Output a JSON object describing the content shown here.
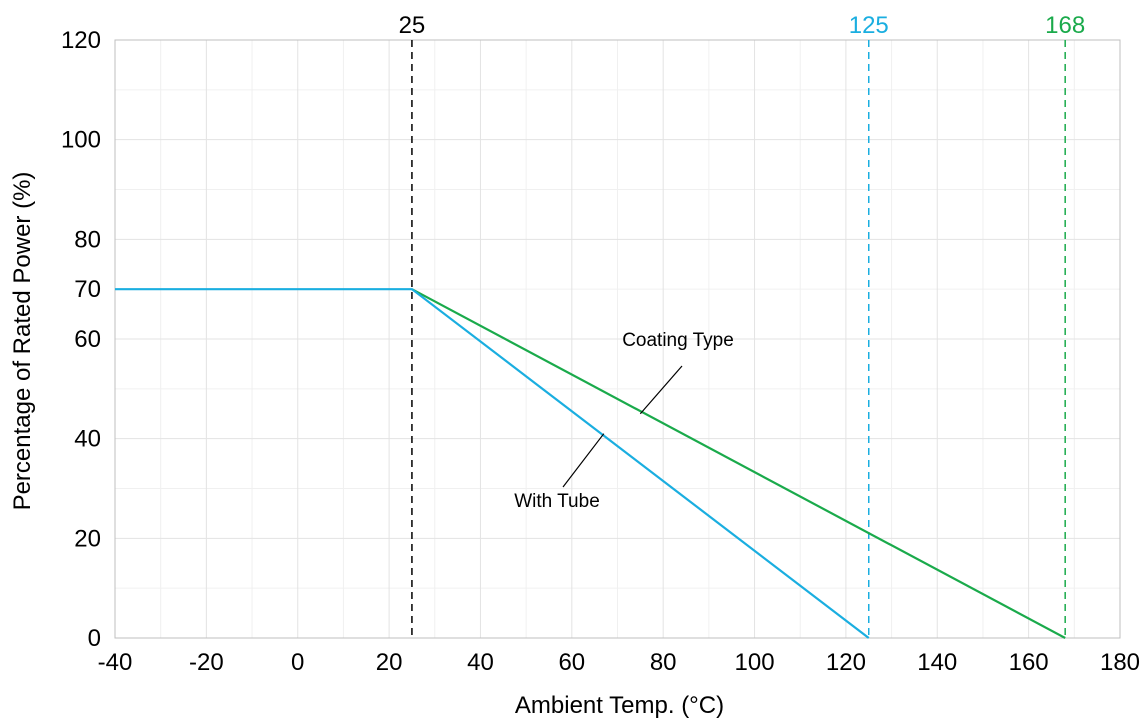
{
  "chart_data": {
    "type": "line",
    "xlabel": "Ambient Temp. (°C)",
    "ylabel": "Percentage of Rated Power (%)",
    "xlim": [
      -40,
      180
    ],
    "ylim": [
      0,
      120
    ],
    "x_ticks": [
      "-40",
      "-20",
      "0",
      "20",
      "40",
      "60",
      "80",
      "100",
      "120",
      "140",
      "160",
      "180"
    ],
    "y_ticks": [
      "0",
      "20",
      "40",
      "60",
      "70",
      "80",
      "100",
      "120"
    ],
    "grid": true,
    "series": [
      {
        "name": "Coating Type",
        "color": "#1aaa4b",
        "x": [
          25,
          168
        ],
        "y": [
          70,
          0
        ]
      },
      {
        "name": "With Tube",
        "color": "#1aaee0",
        "x": [
          -40,
          25,
          125
        ],
        "y": [
          70,
          70,
          0
        ]
      }
    ],
    "reference_lines": [
      {
        "label": "25",
        "x": 25,
        "color": "#000000"
      },
      {
        "label": "125",
        "x": 125,
        "color": "#1aaee0"
      },
      {
        "label": "168",
        "x": 168,
        "color": "#1aaa4b"
      }
    ],
    "annotations": [
      {
        "text": "Coating Type",
        "series": "Coating Type",
        "points_to": [
          75,
          45
        ]
      },
      {
        "text": "With Tube",
        "series": "With Tube",
        "points_to": [
          67,
          41
        ]
      }
    ]
  }
}
